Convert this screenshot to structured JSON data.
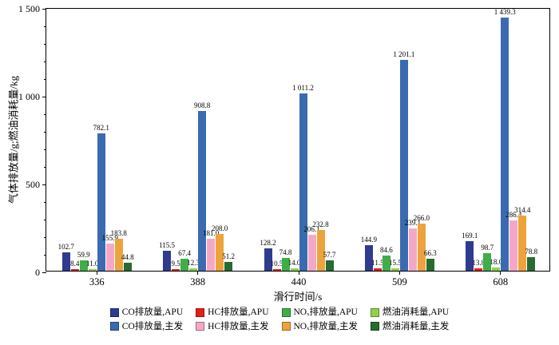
{
  "chart_data": {
    "type": "bar",
    "title": "",
    "xlabel": "滑行时间/s",
    "ylabel": "气体排放量/g;燃油消耗量/kg",
    "ylim": [
      0,
      1500
    ],
    "yticks": [
      {
        "value": 0,
        "label": "0"
      },
      {
        "value": 500,
        "label": "500"
      },
      {
        "value": 1000,
        "label": "1 000"
      },
      {
        "value": 1500,
        "label": "1 500"
      }
    ],
    "minor_tick_step": 100,
    "categories": [
      "336",
      "388",
      "440",
      "509",
      "608"
    ],
    "series": [
      {
        "name": "CO排放量,APU",
        "color": "#2f3b8f",
        "values": [
          102.7,
          115.5,
          128.2,
          144.9,
          169.1
        ],
        "labels": [
          "102.7",
          "115.5",
          "128.2",
          "144.9",
          "169.1"
        ]
      },
      {
        "name": "HC排放量,APU",
        "color": "#e32017",
        "values": [
          8.4,
          9.5,
          10.5,
          11.5,
          13.8
        ],
        "labels": [
          "8.4",
          "9.5",
          "10.5",
          "11.5",
          "13.8"
        ]
      },
      {
        "name": "NOₓ排放量,APU",
        "color": "#3fae49",
        "values": [
          59.9,
          67.4,
          74.8,
          84.6,
          98.7
        ],
        "labels": [
          "59.9",
          "67.4",
          "74.8",
          "84.6",
          "98.7"
        ]
      },
      {
        "name": "燃油消耗量,APU",
        "color": "#8ed14b",
        "values": [
          11.0,
          12.3,
          14.0,
          15.5,
          18.0
        ],
        "labels": [
          "11.0",
          "12.3",
          "14.0",
          "15.5",
          "18.0"
        ]
      },
      {
        "name": "CO排放量,主发",
        "color": "#3a6bb0",
        "values": [
          782.1,
          908.8,
          1011.2,
          1201.1,
          1439.3
        ],
        "labels": [
          "782.1",
          "908.8",
          "1 011.2",
          "1 201.1",
          "1 439.3"
        ]
      },
      {
        "name": "HC排放量,主发",
        "color": "#f5a8c6",
        "values": [
          155.9,
          181.0,
          206.1,
          239.1,
          286.4
        ],
        "labels": [
          "155.9",
          "181.0",
          "206.1",
          "239.1",
          "286.4"
        ]
      },
      {
        "name": "NOₓ排放量,主发",
        "color": "#eda33c",
        "values": [
          183.8,
          208.0,
          232.8,
          266.0,
          314.4
        ],
        "labels": [
          "183.8",
          "208.0",
          "232.8",
          "266.0",
          "314.4"
        ]
      },
      {
        "name": "燃油消耗量,主发",
        "color": "#276b31",
        "values": [
          44.8,
          51.2,
          57.7,
          66.3,
          78.8
        ],
        "labels": [
          "44.8",
          "51.2",
          "57.7",
          "66.3",
          "78.8"
        ]
      }
    ],
    "legend": {
      "position": "bottom",
      "rows": [
        [
          0,
          1,
          2,
          3
        ],
        [
          4,
          5,
          6,
          7
        ]
      ]
    },
    "grid": false
  }
}
